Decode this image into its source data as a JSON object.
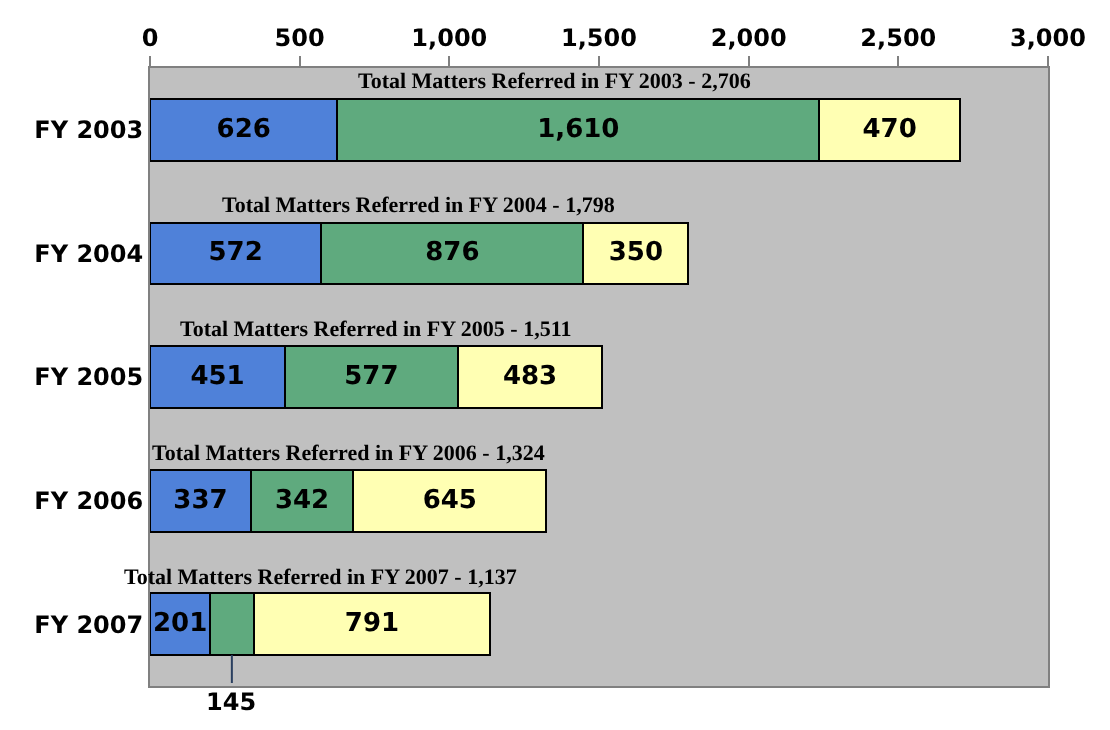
{
  "chart_data": {
    "type": "bar",
    "orientation": "horizontal",
    "stacked": true,
    "grid": false,
    "categories": [
      "FY 2003",
      "FY 2004",
      "FY 2005",
      "FY 2006",
      "FY 2007"
    ],
    "series": [
      {
        "color": "#4f81d9",
        "values": [
          626,
          572,
          451,
          337,
          201
        ],
        "value_labels": [
          "626",
          "572",
          "451",
          "337",
          "201"
        ]
      },
      {
        "color": "#5faa7e",
        "values": [
          1610,
          876,
          577,
          342,
          145
        ],
        "value_labels": [
          "1,610",
          "876",
          "577",
          "342",
          "145"
        ]
      },
      {
        "color": "#ffffb3",
        "values": [
          470,
          350,
          483,
          645,
          791
        ],
        "value_labels": [
          "470",
          "350",
          "483",
          "645",
          "791"
        ]
      }
    ],
    "totals": [
      "Total Matters Referred in FY 2003 - 2,706",
      "Total Matters Referred in FY 2004 - 1,798",
      "Total Matters Referred in FY 2005 - 1,511",
      "Total Matters Referred in FY 2006 - 1,324",
      "Total Matters Referred in FY 2007 - 1,137"
    ],
    "xlim": [
      0,
      3000
    ],
    "xticks": [
      0,
      500,
      {
        "value": 1000,
        "label": "1,000"
      },
      {
        "value": 1500,
        "label": "1,500"
      },
      {
        "value": 2000,
        "label": "2,000"
      },
      {
        "value": 2500,
        "label": "2,500"
      },
      {
        "value": 3000,
        "label": "3,000"
      }
    ]
  }
}
